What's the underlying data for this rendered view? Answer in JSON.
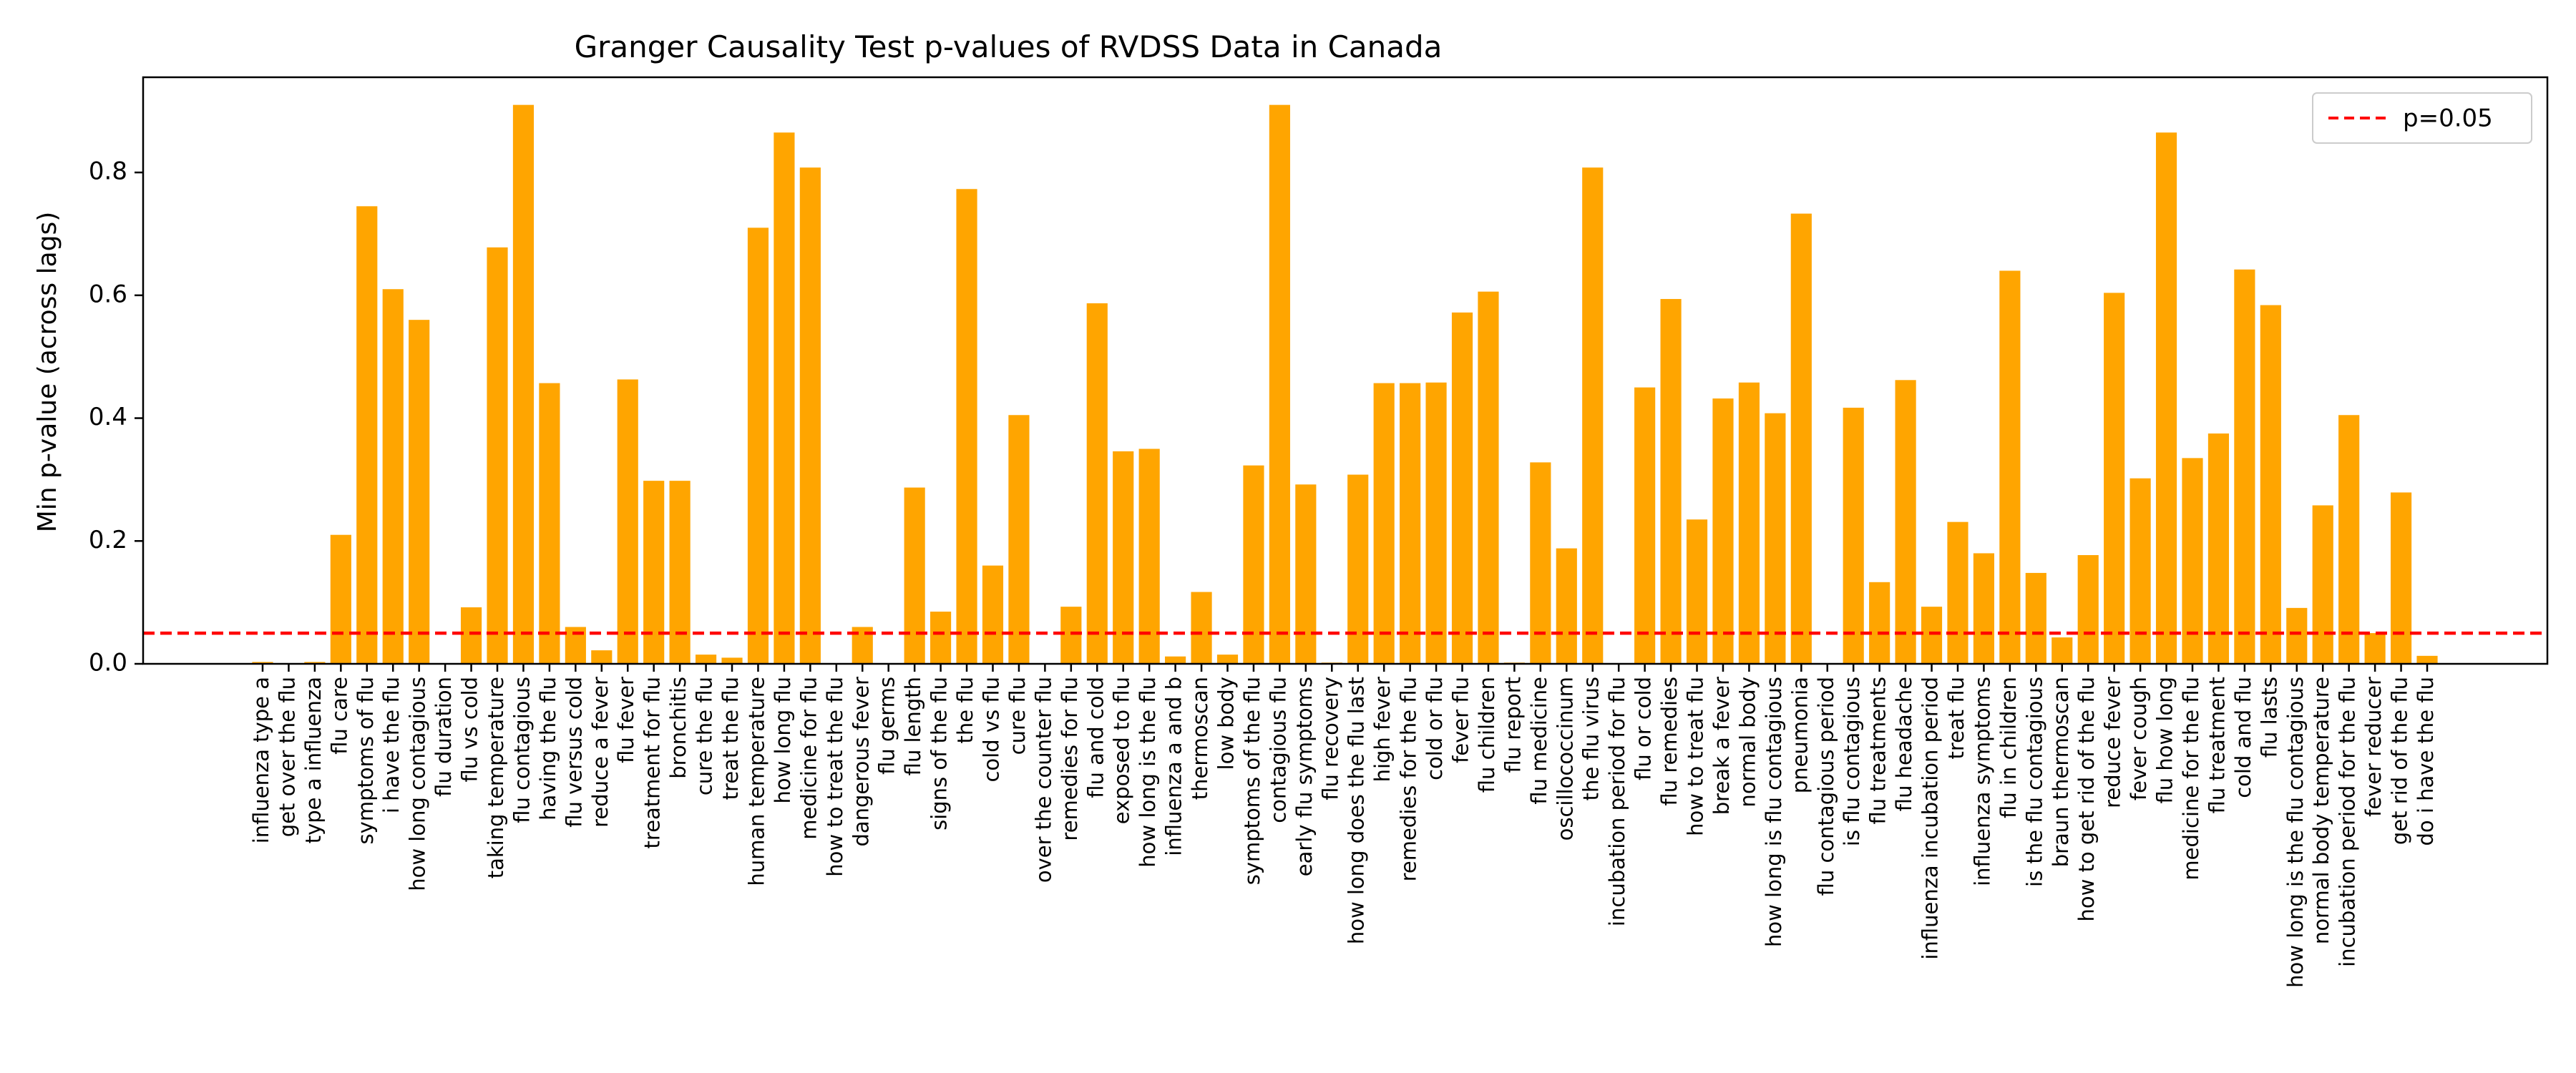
{
  "chart_data": {
    "type": "bar",
    "title": "Granger Causality Test p-values of RVDSS Data in Canada",
    "xlabel": "",
    "ylabel": "Min p-value (across lags)",
    "ylim": [
      0,
      0.955
    ],
    "yticks": [
      0.0,
      0.2,
      0.4,
      0.6,
      0.8
    ],
    "ytick_labels": [
      "0.0",
      "0.2",
      "0.4",
      "0.6",
      "0.8"
    ],
    "bar_color": "#ffa500",
    "grid": false,
    "legend": {
      "position": "top-right",
      "entries": [
        {
          "label": "p=0.05",
          "color": "#ff0000",
          "style": "dashed"
        }
      ]
    },
    "reference_lines": [
      {
        "y": 0.05,
        "label": "p=0.05",
        "color": "#ff0000",
        "style": "dashed"
      }
    ],
    "categories": [
      "influenza type a",
      "get over the flu",
      "type a influenza",
      "flu care",
      "symptoms of flu",
      "i have the flu",
      "how long contagious",
      "flu duration",
      "flu vs cold",
      "taking temperature",
      "flu contagious",
      "having the flu",
      "flu versus cold",
      "reduce a fever",
      "flu fever",
      "treatment for flu",
      "bronchitis",
      "cure the flu",
      "treat the flu",
      "human temperature",
      "how long flu",
      "medicine for flu",
      "how to treat the flu",
      "dangerous fever",
      "flu germs",
      "flu length",
      "signs of the flu",
      "the flu",
      "cold vs flu",
      "cure flu",
      "over the counter flu",
      "remedies for flu",
      "flu and cold",
      "exposed to flu",
      "how long is the flu",
      "influenza a and b",
      "thermoscan",
      "low body",
      "symptoms of the flu",
      "contagious flu",
      "early flu symptoms",
      "flu recovery",
      "how long does the flu last",
      "high fever",
      "remedies for the flu",
      "cold or flu",
      "fever flu",
      "flu children",
      "flu report",
      "flu medicine",
      "oscillococcinum",
      "the flu virus",
      "incubation period for flu",
      "flu or cold",
      "flu remedies",
      "how to treat flu",
      "break a fever",
      "normal body",
      "how long is flu contagious",
      "pneumonia",
      "flu contagious period",
      "is flu contagious",
      "flu treatments",
      "flu headache",
      "influenza incubation period",
      "treat flu",
      "influenza symptoms",
      "flu in children",
      "is the flu contagious",
      "braun thermoscan",
      "how to get rid of the flu",
      "reduce fever",
      "fever cough",
      "flu how long",
      "medicine for the flu",
      "flu treatment",
      "cold and flu",
      "flu lasts",
      "how long is the flu contagious",
      "normal body temperature",
      "incubation period for the flu",
      "fever reducer",
      "get rid of the flu",
      "do i have the flu"
    ],
    "values": [
      0.003,
      0.001,
      0.003,
      0.21,
      0.745,
      0.61,
      0.56,
      0.0,
      0.092,
      0.678,
      0.91,
      0.457,
      0.06,
      0.022,
      0.463,
      0.298,
      0.298,
      0.015,
      0.01,
      0.71,
      0.865,
      0.808,
      0.0,
      0.06,
      0.0,
      0.287,
      0.085,
      0.773,
      0.16,
      0.405,
      0.0,
      0.093,
      0.587,
      0.346,
      0.35,
      0.012,
      0.117,
      0.015,
      0.323,
      0.91,
      0.292,
      0.002,
      0.308,
      0.457,
      0.457,
      0.458,
      0.572,
      0.606,
      0.002,
      0.328,
      0.188,
      0.808,
      0.0,
      0.45,
      0.594,
      0.235,
      0.432,
      0.458,
      0.408,
      0.733,
      0.0,
      0.417,
      0.133,
      0.462,
      0.093,
      0.231,
      0.18,
      0.64,
      0.148,
      0.043,
      0.177,
      0.604,
      0.302,
      0.865,
      0.335,
      0.375,
      0.642,
      0.584,
      0.091,
      0.258,
      0.405,
      0.05,
      0.279,
      0.013
    ]
  }
}
